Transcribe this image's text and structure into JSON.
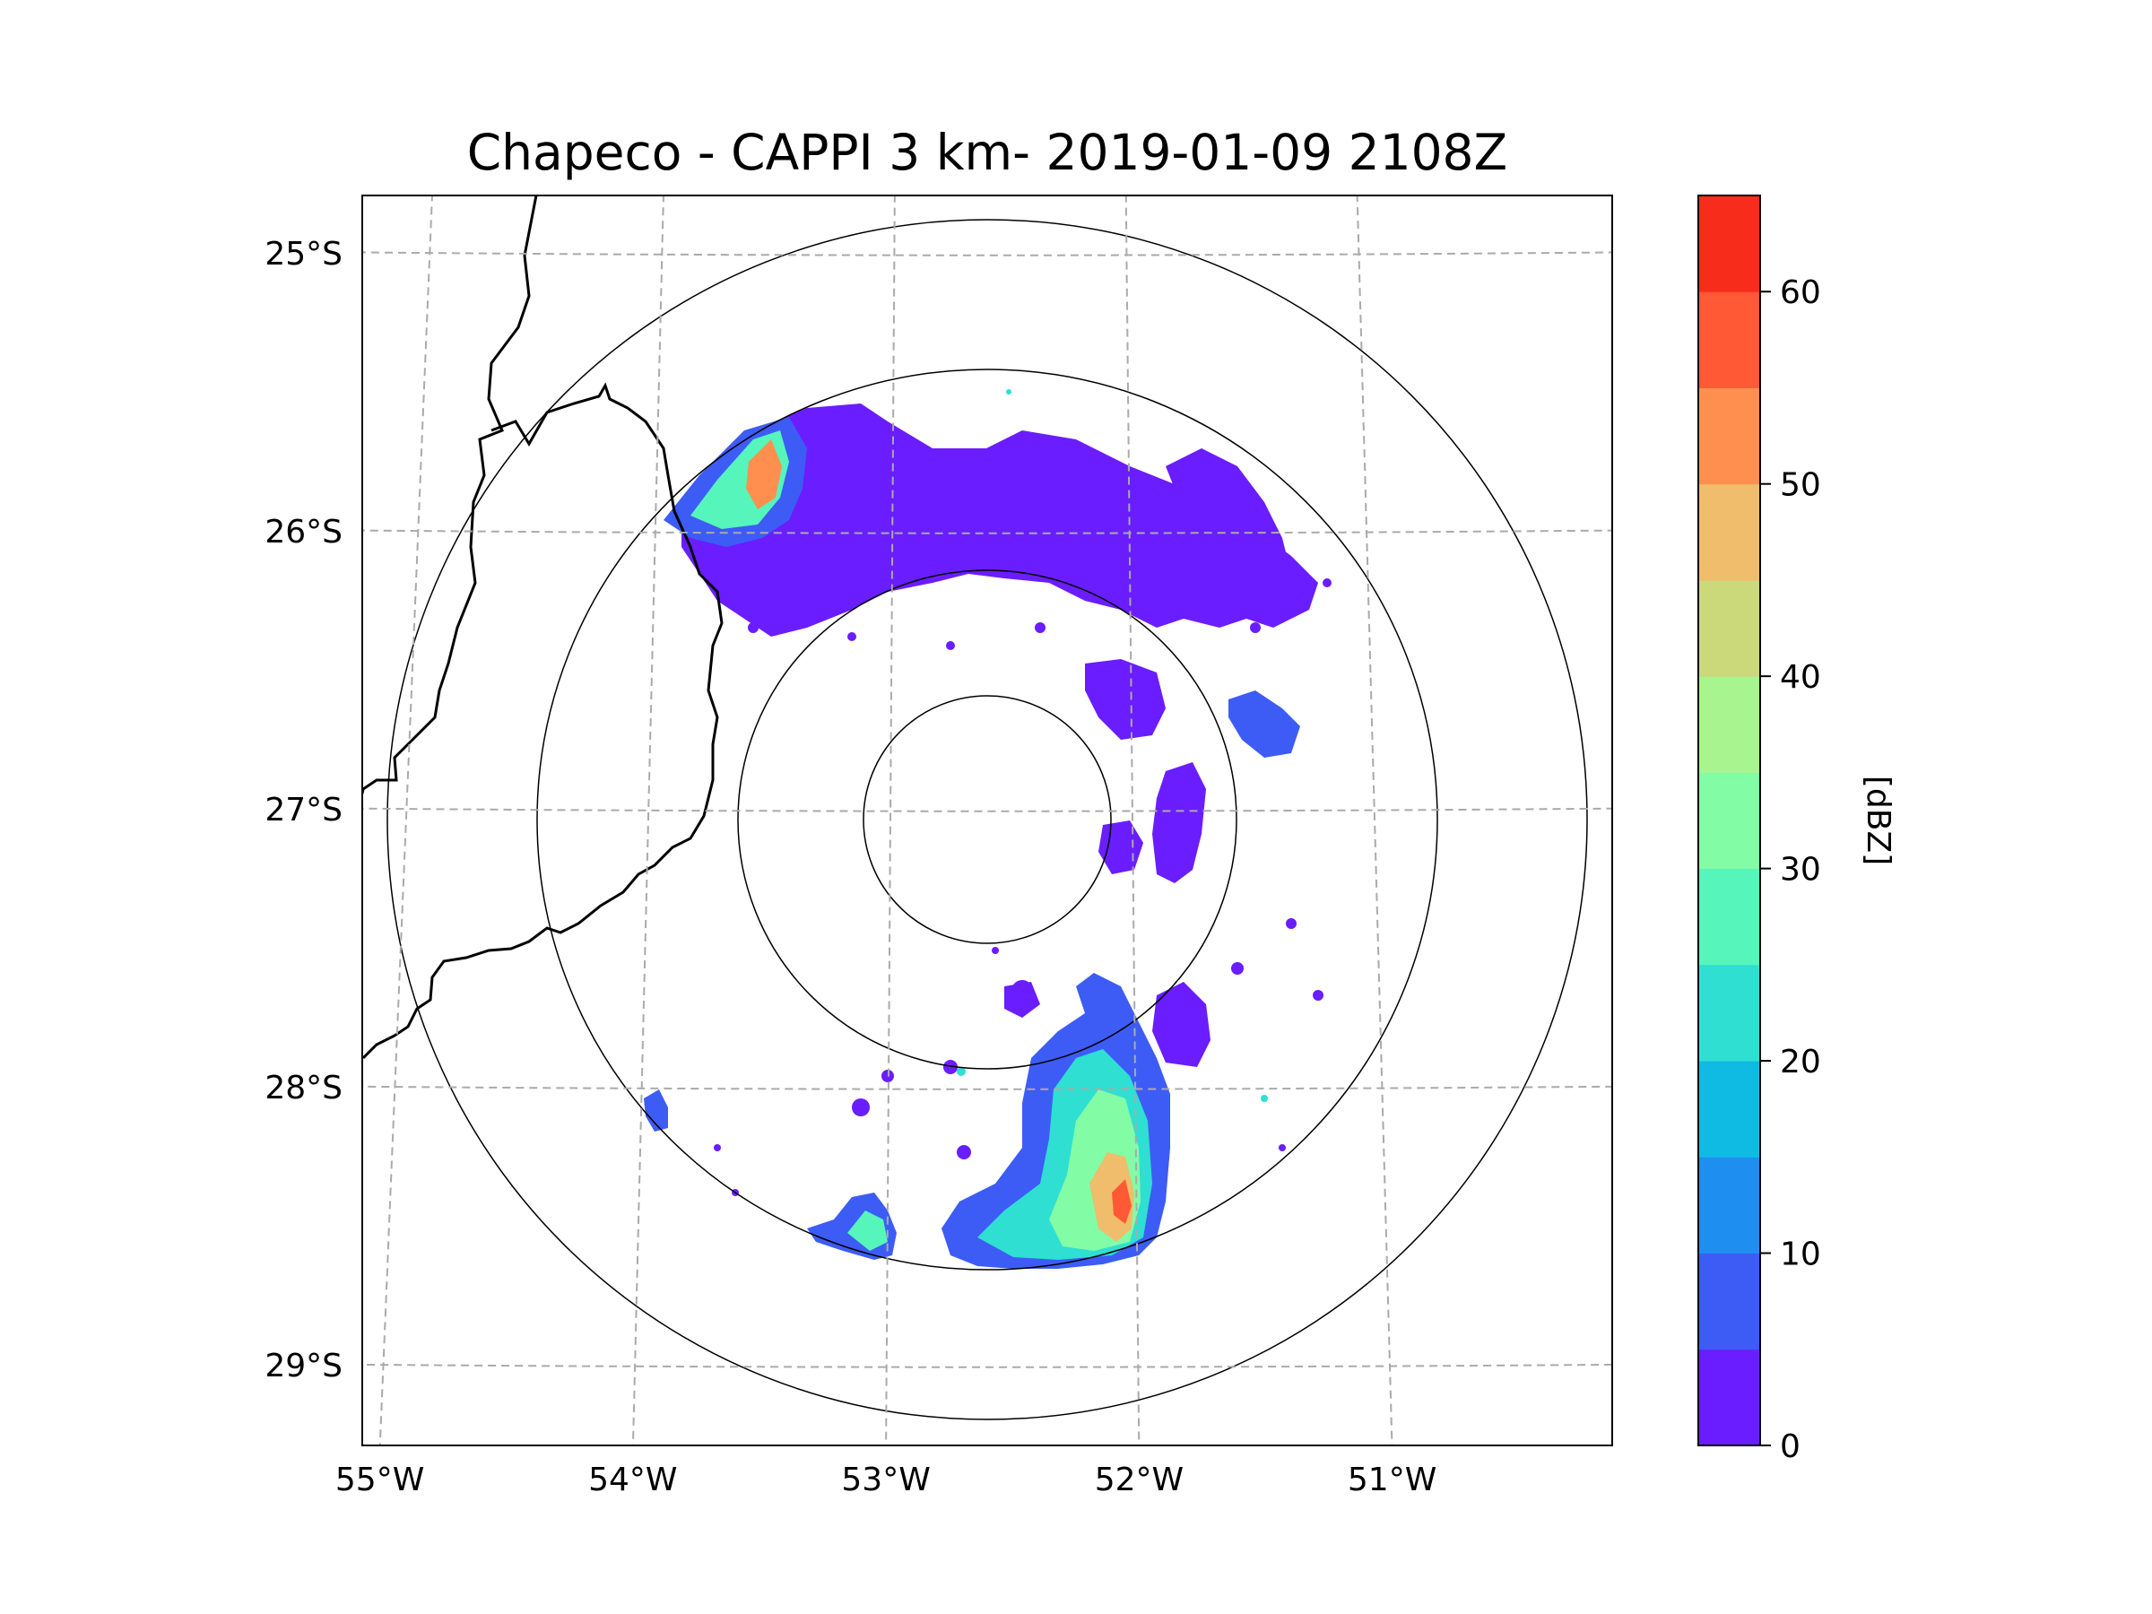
{
  "chart_data": {
    "type": "heatmap",
    "title": "Chapeco - CAPPI 3 km- 2019-01-09 2108Z",
    "xlabel": "",
    "ylabel": "",
    "projection": "map",
    "radar_center": {
      "lon": -52.6,
      "lat": -27.03
    },
    "xlim": [
      -55.15,
      -50.05
    ],
    "ylim": [
      -29.3,
      -24.8
    ],
    "x_ticks": [
      {
        "value": -55,
        "label": "55°W"
      },
      {
        "value": -54,
        "label": "54°W"
      },
      {
        "value": -53,
        "label": "53°W"
      },
      {
        "value": -52,
        "label": "52°W"
      },
      {
        "value": -51,
        "label": "51°W"
      }
    ],
    "y_ticks": [
      {
        "value": -25,
        "label": "25°S"
      },
      {
        "value": -26,
        "label": "26°S"
      },
      {
        "value": -27,
        "label": "27°S"
      },
      {
        "value": -28,
        "label": "28°S"
      },
      {
        "value": -29,
        "label": "29°S"
      }
    ],
    "grid": true,
    "range_rings_deg": [
      0.5,
      1.0,
      1.5,
      2.2
    ],
    "colorbar": {
      "label": "[dBZ]",
      "min": 0,
      "max": 65,
      "ticks": [
        0,
        10,
        20,
        30,
        40,
        50,
        60
      ],
      "levels": [
        0,
        5,
        10,
        15,
        20,
        25,
        30,
        35,
        40,
        45,
        50,
        55,
        60,
        65
      ],
      "colors": [
        "#6a1dff",
        "#3d5cf5",
        "#1e8ef0",
        "#0fbbe3",
        "#2edfd2",
        "#55f5bb",
        "#83fca6",
        "#a8f48e",
        "#cbd97a",
        "#efbd6b",
        "#ff8f4e",
        "#ff5935",
        "#f82c1b"
      ]
    },
    "echo_regions": [
      {
        "name": "north-band-west",
        "lon": -53.1,
        "lat": -26.0,
        "dbz": 5
      },
      {
        "name": "north-band-center",
        "lon": -52.5,
        "lat": -25.9,
        "dbz": 5
      },
      {
        "name": "north-band-east",
        "lon": -51.8,
        "lat": -26.0,
        "dbz": 5
      },
      {
        "name": "northwest-core",
        "lon": -53.55,
        "lat": -25.8,
        "dbz": 45
      },
      {
        "name": "east-cell-1",
        "lon": -52.05,
        "lat": -26.6,
        "dbz": 5
      },
      {
        "name": "east-cell-2",
        "lon": -51.9,
        "lat": -27.1,
        "dbz": 5
      },
      {
        "name": "south-storm",
        "lon": -52.1,
        "lat": -28.2,
        "dbz": 35
      },
      {
        "name": "south-storm-core",
        "lon": -52.0,
        "lat": -28.35,
        "dbz": 50
      },
      {
        "name": "southwest-cell",
        "lon": -53.0,
        "lat": -28.55,
        "dbz": 25
      },
      {
        "name": "west-cell",
        "lon": -53.95,
        "lat": -28.05,
        "dbz": 15
      }
    ],
    "borders": "country/state boundary lines (black) in western part of map"
  }
}
